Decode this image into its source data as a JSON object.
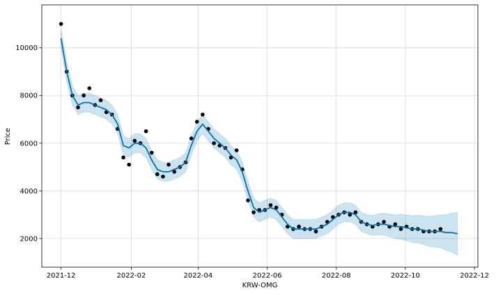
{
  "chart_data": {
    "type": "forecast",
    "xlabel": "KRW-OMG",
    "ylabel": "Price",
    "x": [
      "2021-12-01",
      "2021-12-06",
      "2021-12-11",
      "2021-12-16",
      "2021-12-21",
      "2021-12-26",
      "2021-12-31",
      "2022-01-05",
      "2022-01-10",
      "2022-01-15",
      "2022-01-20",
      "2022-01-25",
      "2022-01-30",
      "2022-02-04",
      "2022-02-09",
      "2022-02-14",
      "2022-02-19",
      "2022-02-24",
      "2022-03-01",
      "2022-03-06",
      "2022-03-11",
      "2022-03-16",
      "2022-03-21",
      "2022-03-26",
      "2022-03-31",
      "2022-04-05",
      "2022-04-10",
      "2022-04-15",
      "2022-04-20",
      "2022-04-25",
      "2022-04-30",
      "2022-05-05",
      "2022-05-10",
      "2022-05-15",
      "2022-05-20",
      "2022-05-25",
      "2022-05-30",
      "2022-06-04",
      "2022-06-09",
      "2022-06-14",
      "2022-06-19",
      "2022-06-24",
      "2022-06-29",
      "2022-07-04",
      "2022-07-09",
      "2022-07-14",
      "2022-07-19",
      "2022-07-24",
      "2022-07-29",
      "2022-08-03",
      "2022-08-08",
      "2022-08-13",
      "2022-08-18",
      "2022-08-23",
      "2022-08-28",
      "2022-09-02",
      "2022-09-07",
      "2022-09-12",
      "2022-09-17",
      "2022-09-22",
      "2022-09-27",
      "2022-10-02",
      "2022-10-07",
      "2022-10-12",
      "2022-10-17",
      "2022-10-22",
      "2022-10-27",
      "2022-11-01",
      "2022-11-06",
      "2022-11-11",
      "2022-11-16"
    ],
    "observed": {
      "color": "#000000",
      "values": [
        11000,
        9000,
        8000,
        7500,
        8000,
        8300,
        7600,
        7800,
        7300,
        7200,
        6600,
        5400,
        5100,
        6100,
        6000,
        6500,
        5600,
        4700,
        4600,
        5100,
        4800,
        5000,
        5200,
        6200,
        6900,
        7200,
        6600,
        6000,
        5900,
        5800,
        5400,
        5700,
        4900,
        3600,
        3100,
        3200,
        3200,
        3400,
        3300,
        3000,
        2500,
        2400,
        2500,
        2400,
        2400,
        2300,
        2500,
        2700,
        2900,
        3000,
        3100,
        3000,
        3100,
        2700,
        2600,
        2500,
        2600,
        2700,
        2500,
        2600,
        2400,
        2500,
        2400,
        2400,
        2300,
        2300,
        2300,
        2400,
        null,
        null,
        null
      ]
    },
    "forecast": {
      "color": "#0072B2",
      "values": [
        10400,
        9000,
        8000,
        7600,
        7700,
        7700,
        7600,
        7500,
        7400,
        7200,
        6800,
        5900,
        5800,
        6000,
        6000,
        5800,
        5300,
        4900,
        4800,
        4800,
        4900,
        5000,
        5200,
        5900,
        6500,
        6800,
        6500,
        6200,
        6000,
        5800,
        5500,
        5300,
        4800,
        4000,
        3300,
        3100,
        3200,
        3300,
        3200,
        2900,
        2600,
        2400,
        2400,
        2400,
        2400,
        2400,
        2500,
        2600,
        2800,
        3000,
        3100,
        3100,
        3000,
        2700,
        2600,
        2550,
        2600,
        2600,
        2550,
        2500,
        2500,
        2450,
        2400,
        2400,
        2350,
        2300,
        2300,
        2300,
        2250,
        2250,
        2200
      ]
    },
    "interval": {
      "color": "#0072B2",
      "lower": [
        10000,
        8600,
        7600,
        7200,
        7300,
        7300,
        7200,
        7100,
        7000,
        6800,
        6400,
        5500,
        5400,
        5600,
        5600,
        5400,
        4900,
        4500,
        4400,
        4400,
        4500,
        4600,
        4800,
        5500,
        6100,
        6400,
        6100,
        5800,
        5600,
        5400,
        5100,
        4900,
        4400,
        3600,
        2900,
        2700,
        2800,
        2900,
        2800,
        2500,
        2200,
        2000,
        2000,
        2000,
        2000,
        2000,
        2100,
        2200,
        2400,
        2600,
        2700,
        2700,
        2600,
        2300,
        2200,
        2130,
        2160,
        2140,
        2070,
        2000,
        1980,
        1910,
        1840,
        1820,
        1750,
        1670,
        1640,
        1610,
        1500,
        1430,
        1300
      ],
      "upper": [
        10800,
        9400,
        8400,
        8000,
        8100,
        8100,
        8000,
        7900,
        7800,
        7600,
        7200,
        6300,
        6200,
        6400,
        6400,
        6200,
        5700,
        5300,
        5200,
        5200,
        5300,
        5400,
        5600,
        6300,
        6900,
        7200,
        6900,
        6600,
        6400,
        6200,
        5900,
        5700,
        5200,
        4400,
        3700,
        3500,
        3600,
        3700,
        3600,
        3300,
        3000,
        2800,
        2800,
        2800,
        2800,
        2800,
        2900,
        3000,
        3200,
        3400,
        3500,
        3500,
        3400,
        3100,
        3000,
        2970,
        3040,
        3060,
        3030,
        3000,
        3020,
        2990,
        2960,
        2980,
        2950,
        2930,
        2960,
        2990,
        3000,
        3070,
        3100
      ]
    },
    "xlim": [
      "2021-11-14",
      "2022-12-04"
    ],
    "xticks": [
      {
        "value": "2021-12-01",
        "label": "2021-12"
      },
      {
        "value": "2022-02-01",
        "label": "2022-02"
      },
      {
        "value": "2022-04-01",
        "label": "2022-04"
      },
      {
        "value": "2022-06-01",
        "label": "2022-06"
      },
      {
        "value": "2022-08-01",
        "label": "2022-08"
      },
      {
        "value": "2022-10-01",
        "label": "2022-10"
      },
      {
        "value": "2022-12-01",
        "label": "2022-12"
      }
    ],
    "ylim": [
      800,
      11800
    ],
    "yticks": [
      2000,
      4000,
      6000,
      8000,
      10000
    ],
    "grid": true
  }
}
